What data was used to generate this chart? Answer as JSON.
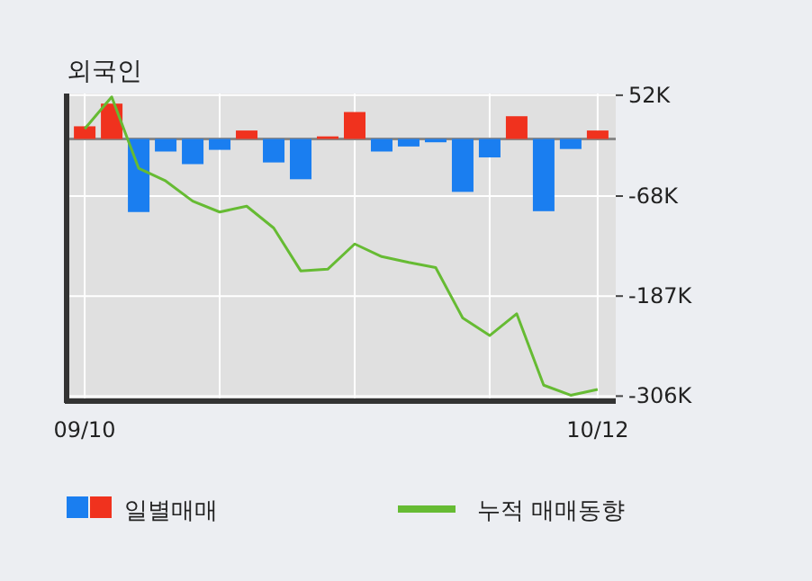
{
  "chart_data": {
    "type": "bar",
    "title": "외국인",
    "categories": [
      "09/10",
      null,
      null,
      null,
      null,
      null,
      null,
      null,
      null,
      null,
      null,
      null,
      null,
      null,
      null,
      null,
      null,
      null,
      null,
      "10/12"
    ],
    "series": [
      {
        "name": "일별매매",
        "colors": [
          "#f0321e",
          "#f0321e",
          "#1a7ef0",
          "#1a7ef0",
          "#1a7ef0",
          "#1a7ef0",
          "#f0321e",
          "#1a7ef0",
          "#1a7ef0",
          "#f0321e",
          "#f0321e",
          "#1a7ef0",
          "#1a7ef0",
          "#1a7ef0",
          "#1a7ef0",
          "#1a7ef0",
          "#f0321e",
          "#1a7ef0",
          "#1a7ef0",
          "#f0321e"
        ],
        "values": [
          15,
          42,
          -87,
          -15,
          -30,
          -13,
          10,
          -28,
          -48,
          3,
          32,
          -15,
          -9,
          -4,
          -63,
          -22,
          27,
          -86,
          -12,
          10
        ]
      },
      {
        "name": "누적 매매동향",
        "type": "line",
        "color": "#66bb33",
        "values": [
          12,
          50,
          -35,
          -50,
          -74,
          -87,
          -80,
          -106,
          -157,
          -155,
          -125,
          -140,
          -147,
          -153,
          -213,
          -234,
          -208,
          -293,
          -305,
          -298
        ]
      }
    ],
    "ylim": [
      -312,
      54
    ],
    "yticks": [
      {
        "value": 52,
        "label": "52K"
      },
      {
        "value": -68,
        "label": "-68K"
      },
      {
        "value": -187,
        "label": "-187K"
      },
      {
        "value": -306,
        "label": "-306K"
      }
    ],
    "grid": true,
    "legend": "bottom"
  }
}
